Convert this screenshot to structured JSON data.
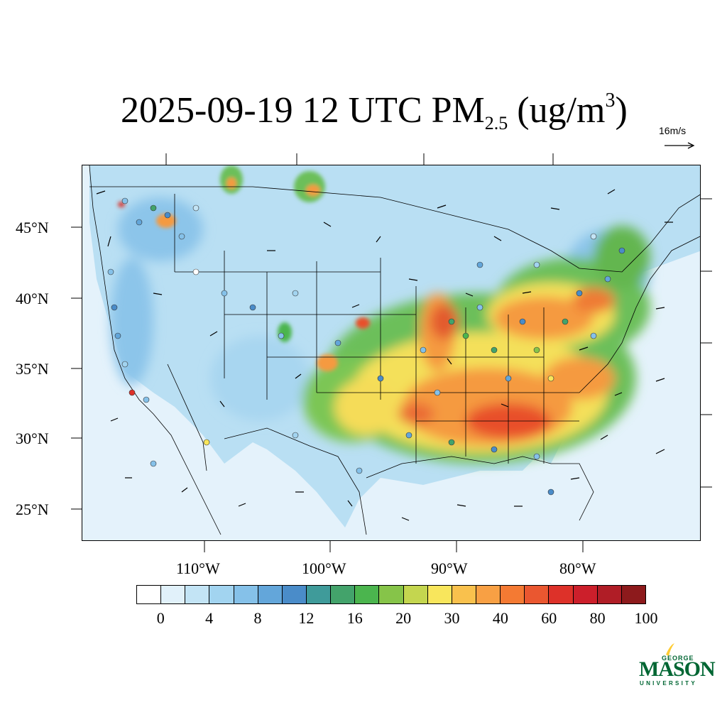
{
  "title": {
    "main": "2025-09-19 12 UTC PM",
    "sub": "2.5",
    "units_open": " (ug/m",
    "units_sup": "3",
    "units_close": ")"
  },
  "reference_vector": {
    "label": "16m/s"
  },
  "lat_labels": [
    "45°N",
    "40°N",
    "35°N",
    "30°N",
    "25°N"
  ],
  "lon_labels": [
    "110°W",
    "100°W",
    "90°W",
    "80°W"
  ],
  "colorbar": {
    "colors": [
      "#ffffff",
      "#e1f1fa",
      "#c3e4f5",
      "#a2d4f0",
      "#85c1e9",
      "#63a6da",
      "#4a8cc9",
      "#3f9b9a",
      "#43a36b",
      "#4bb54e",
      "#86c449",
      "#c4d64f",
      "#f8e65c",
      "#f9c14d",
      "#f8a044",
      "#f47a33",
      "#ea5730",
      "#dd3129",
      "#cc1f2b",
      "#b01d26",
      "#8d1a1c"
    ],
    "labels": [
      "0",
      "4",
      "8",
      "12",
      "16",
      "20",
      "30",
      "40",
      "60",
      "80",
      "100"
    ]
  },
  "logo": {
    "line1": "GEORGE",
    "line2": "MASON",
    "line3": "UNIVERSITY"
  },
  "colors": {
    "logo_green": "#006633",
    "logo_gold": "#ffcc33"
  }
}
